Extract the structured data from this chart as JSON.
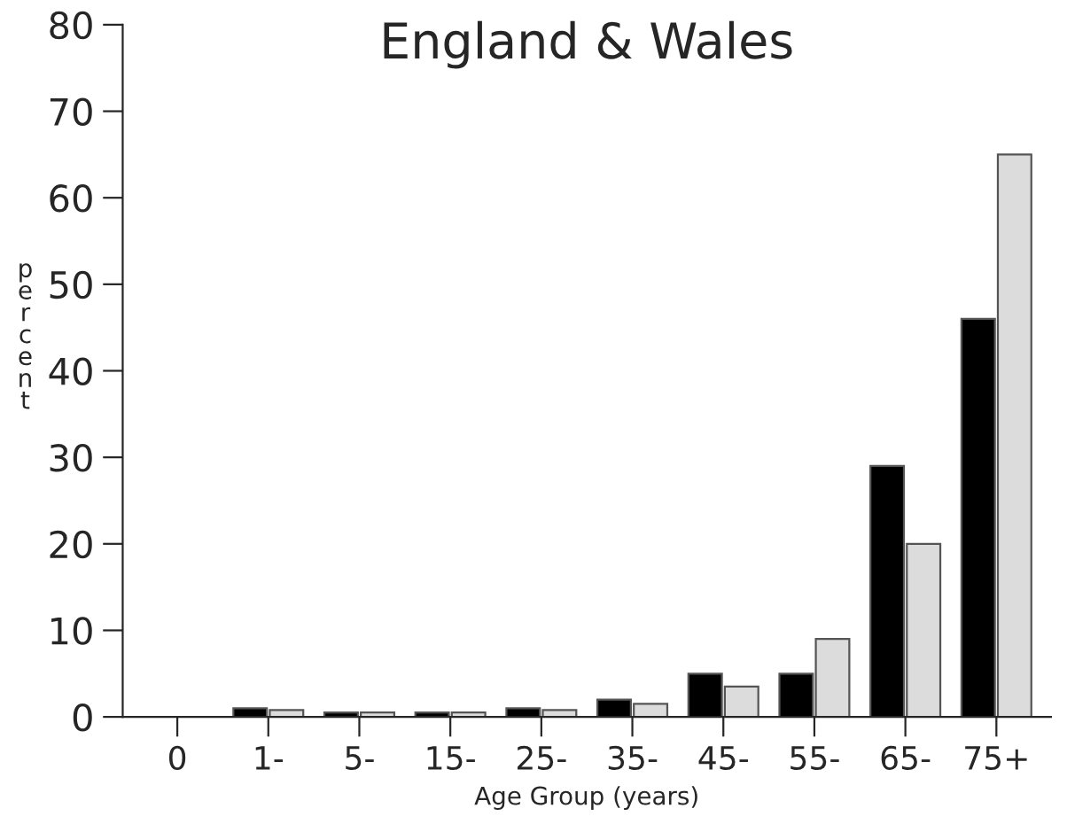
{
  "chart_data": {
    "type": "bar",
    "title": "England & Wales",
    "xlabel": "Age Group (years)",
    "ylabel": "percent",
    "categories": [
      "0",
      "1-",
      "5-",
      "15-",
      "25-",
      "35-",
      "45-",
      "55-",
      "65-",
      "75+"
    ],
    "series": [
      {
        "color": "#000000",
        "values": [
          null,
          1,
          0.5,
          0.5,
          1,
          2,
          5,
          5,
          29,
          46
        ]
      },
      {
        "color": "#dcdcdc",
        "values": [
          null,
          0.8,
          0.5,
          0.5,
          0.8,
          1.5,
          3.5,
          9,
          20,
          65
        ]
      }
    ],
    "ylim": [
      0,
      80
    ],
    "yticks": [
      0,
      10,
      20,
      30,
      40,
      50,
      60,
      70,
      80
    ],
    "grid": false,
    "legend": false
  }
}
